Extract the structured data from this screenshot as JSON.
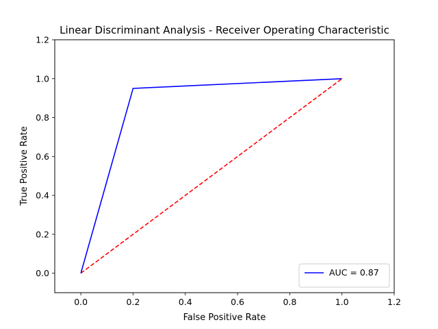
{
  "chart_data": {
    "type": "line",
    "title": "Linear Discriminant Analysis - Receiver Operating Characteristic",
    "xlabel": "False Positive Rate",
    "ylabel": "True Positive Rate",
    "xlim": [
      -0.1,
      1.2
    ],
    "ylim": [
      -0.1,
      1.2
    ],
    "xticks": [
      "0.0",
      "0.2",
      "0.4",
      "0.6",
      "0.8",
      "1.0",
      "1.2"
    ],
    "yticks": [
      "0.0",
      "0.2",
      "0.4",
      "0.6",
      "0.8",
      "1.0",
      "1.2"
    ],
    "grid": false,
    "legend_position": "lower-right",
    "series": [
      {
        "name": "AUC = 0.87",
        "color": "#0000ff",
        "style": "solid",
        "x": [
          0.0,
          0.2,
          1.0
        ],
        "y": [
          0.0,
          0.95,
          1.0
        ]
      },
      {
        "color": "#ff0000",
        "style": "dashed",
        "x": [
          0.0,
          1.0
        ],
        "y": [
          0.0,
          1.0
        ]
      }
    ]
  }
}
